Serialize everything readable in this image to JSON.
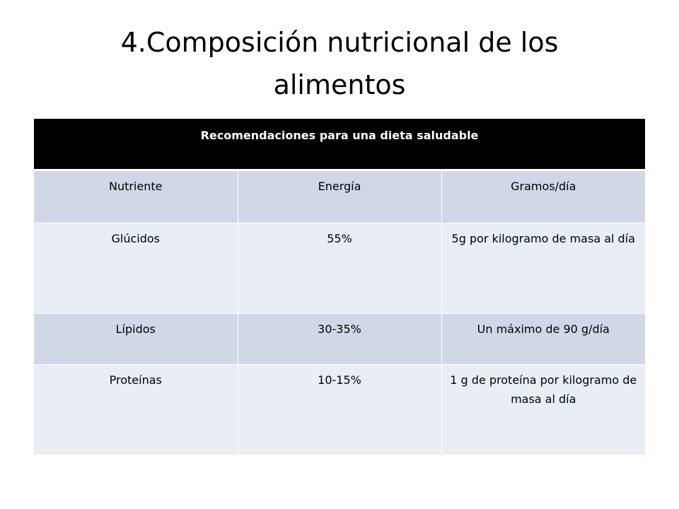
{
  "slide": {
    "title_line1": "4.Composición nutricional de los",
    "title_line2": "alimentos"
  },
  "table": {
    "header": "Recomendaciones para una dieta saludable",
    "columns": [
      "Nutriente",
      "Energía",
      "Gramos/día"
    ],
    "rows": [
      {
        "nutrient": "Glúcidos",
        "energy": "55%",
        "grams": "5g por kilogramo de masa al día"
      },
      {
        "nutrient": "Lípidos",
        "energy": "30-35%",
        "grams": "Un máximo de 90 g/día"
      },
      {
        "nutrient": "Proteínas",
        "energy": "10-15%",
        "grams": "1 g de proteína por kilogramo de masa al día"
      }
    ]
  },
  "colors": {
    "header_bg": "#000000",
    "band_bg": "#d0d8e8",
    "plain_bg": "#e9edf4"
  }
}
